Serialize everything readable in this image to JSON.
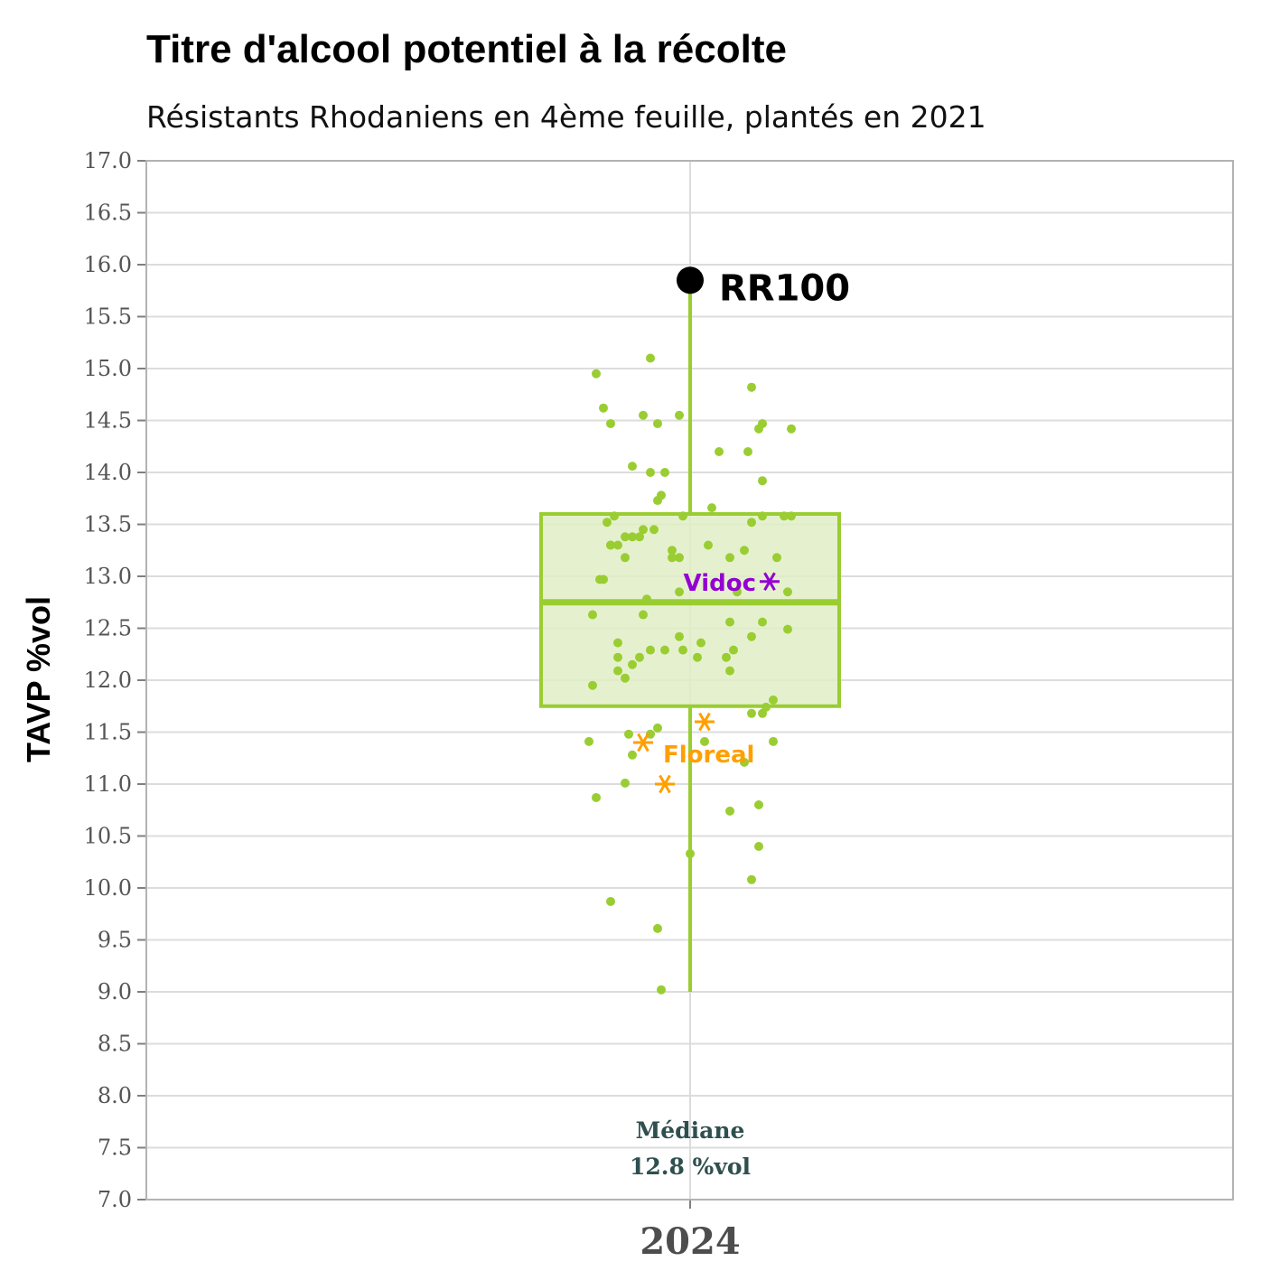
{
  "chart_data": {
    "type": "box",
    "title": "Titre d'alcool potentiel à la récolte",
    "subtitle": "Résistants Rhodaniens en 4ème feuille, plantés en 2021",
    "ylabel": "TAVP %vol",
    "categories": [
      "2024"
    ],
    "ylim": [
      7.0,
      17.0
    ],
    "yticks": [
      "7.0",
      "7.5",
      "8.0",
      "8.5",
      "9.0",
      "9.5",
      "10.0",
      "10.5",
      "11.0",
      "11.5",
      "12.0",
      "12.5",
      "13.0",
      "13.5",
      "14.0",
      "14.5",
      "15.0",
      "15.5",
      "16.0",
      "16.5",
      "17.0"
    ],
    "grid": true,
    "box": {
      "min": 9.0,
      "q1": 11.75,
      "median": 12.75,
      "q3": 13.6,
      "max": 15.85
    },
    "median_annotation": {
      "line1": "Médiane",
      "line2": "12.8 %vol"
    },
    "outlier": {
      "label": "RR100",
      "value": 15.85
    },
    "highlighted": [
      {
        "name": "Vidoc",
        "color": "#9400d3",
        "values": [
          12.95
        ]
      },
      {
        "name": "Floreal",
        "color": "#ff9f00",
        "values": [
          11.4,
          11.6,
          11.0
        ]
      }
    ],
    "points": [
      {
        "j": -0.26,
        "v": 14.95
      },
      {
        "j": -0.11,
        "v": 15.1
      },
      {
        "j": 0.17,
        "v": 14.82
      },
      {
        "j": -0.24,
        "v": 14.62
      },
      {
        "j": -0.22,
        "v": 14.47
      },
      {
        "j": -0.13,
        "v": 14.55
      },
      {
        "j": -0.09,
        "v": 14.47
      },
      {
        "j": -0.03,
        "v": 14.55
      },
      {
        "j": 0.19,
        "v": 14.42
      },
      {
        "j": 0.2,
        "v": 14.47
      },
      {
        "j": 0.28,
        "v": 14.42
      },
      {
        "j": 0.08,
        "v": 14.2
      },
      {
        "j": 0.16,
        "v": 14.2
      },
      {
        "j": -0.16,
        "v": 14.06
      },
      {
        "j": -0.11,
        "v": 14.0
      },
      {
        "j": -0.07,
        "v": 14.0
      },
      {
        "j": 0.2,
        "v": 13.92
      },
      {
        "j": -0.08,
        "v": 13.78
      },
      {
        "j": -0.09,
        "v": 13.73
      },
      {
        "j": 0.06,
        "v": 13.66
      },
      {
        "j": -0.21,
        "v": 13.58
      },
      {
        "j": -0.02,
        "v": 13.58
      },
      {
        "j": 0.2,
        "v": 13.58
      },
      {
        "j": 0.26,
        "v": 13.58
      },
      {
        "j": 0.28,
        "v": 13.58
      },
      {
        "j": -0.23,
        "v": 13.52
      },
      {
        "j": 0.17,
        "v": 13.52
      },
      {
        "j": -0.13,
        "v": 13.45
      },
      {
        "j": -0.1,
        "v": 13.45
      },
      {
        "j": -0.18,
        "v": 13.38
      },
      {
        "j": -0.16,
        "v": 13.38
      },
      {
        "j": -0.14,
        "v": 13.38
      },
      {
        "j": -0.22,
        "v": 13.3
      },
      {
        "j": -0.22,
        "v": 13.3
      },
      {
        "j": -0.2,
        "v": 13.3
      },
      {
        "j": 0.05,
        "v": 13.3
      },
      {
        "j": -0.05,
        "v": 13.25
      },
      {
        "j": 0.15,
        "v": 13.25
      },
      {
        "j": -0.18,
        "v": 13.18
      },
      {
        "j": -0.05,
        "v": 13.18
      },
      {
        "j": -0.03,
        "v": 13.18
      },
      {
        "j": 0.11,
        "v": 13.18
      },
      {
        "j": 0.24,
        "v": 13.18
      },
      {
        "j": -0.25,
        "v": 12.97
      },
      {
        "j": -0.24,
        "v": 12.97
      },
      {
        "j": -0.03,
        "v": 12.85
      },
      {
        "j": 0.13,
        "v": 12.85
      },
      {
        "j": 0.27,
        "v": 12.85
      },
      {
        "j": -0.12,
        "v": 12.78
      },
      {
        "j": -0.27,
        "v": 12.63
      },
      {
        "j": -0.13,
        "v": 12.63
      },
      {
        "j": 0.11,
        "v": 12.56
      },
      {
        "j": 0.2,
        "v": 12.56
      },
      {
        "j": 0.27,
        "v": 12.49
      },
      {
        "j": -0.03,
        "v": 12.42
      },
      {
        "j": 0.17,
        "v": 12.42
      },
      {
        "j": -0.2,
        "v": 12.36
      },
      {
        "j": 0.03,
        "v": 12.36
      },
      {
        "j": -0.11,
        "v": 12.29
      },
      {
        "j": -0.07,
        "v": 12.29
      },
      {
        "j": -0.02,
        "v": 12.29
      },
      {
        "j": 0.12,
        "v": 12.29
      },
      {
        "j": -0.2,
        "v": 12.22
      },
      {
        "j": -0.14,
        "v": 12.22
      },
      {
        "j": 0.02,
        "v": 12.22
      },
      {
        "j": 0.1,
        "v": 12.22
      },
      {
        "j": -0.16,
        "v": 12.15
      },
      {
        "j": -0.2,
        "v": 12.09
      },
      {
        "j": 0.11,
        "v": 12.09
      },
      {
        "j": -0.18,
        "v": 12.02
      },
      {
        "j": -0.27,
        "v": 11.95
      },
      {
        "j": 0.23,
        "v": 11.81
      },
      {
        "j": 0.21,
        "v": 11.74
      },
      {
        "j": 0.17,
        "v": 11.68
      },
      {
        "j": 0.2,
        "v": 11.68
      },
      {
        "j": -0.09,
        "v": 11.54
      },
      {
        "j": -0.17,
        "v": 11.48
      },
      {
        "j": -0.11,
        "v": 11.48
      },
      {
        "j": -0.28,
        "v": 11.41
      },
      {
        "j": 0.04,
        "v": 11.41
      },
      {
        "j": 0.23,
        "v": 11.41
      },
      {
        "j": -0.16,
        "v": 11.28
      },
      {
        "j": 0.15,
        "v": 11.21
      },
      {
        "j": -0.18,
        "v": 11.01
      },
      {
        "j": -0.26,
        "v": 10.87
      },
      {
        "j": 0.19,
        "v": 10.8
      },
      {
        "j": 0.11,
        "v": 10.74
      },
      {
        "j": 0.19,
        "v": 10.4
      },
      {
        "j": 0.0,
        "v": 10.33
      },
      {
        "j": 0.17,
        "v": 10.08
      },
      {
        "j": -0.22,
        "v": 9.87
      },
      {
        "j": -0.09,
        "v": 9.61
      },
      {
        "j": -0.08,
        "v": 9.02
      }
    ]
  },
  "colors": {
    "box": "#9acd32",
    "box_fill": "#e0eec6",
    "points": "#9acd32",
    "grid": "#dcdcdc",
    "panel_border": "#b3b3b3",
    "outlier": "#000000"
  }
}
